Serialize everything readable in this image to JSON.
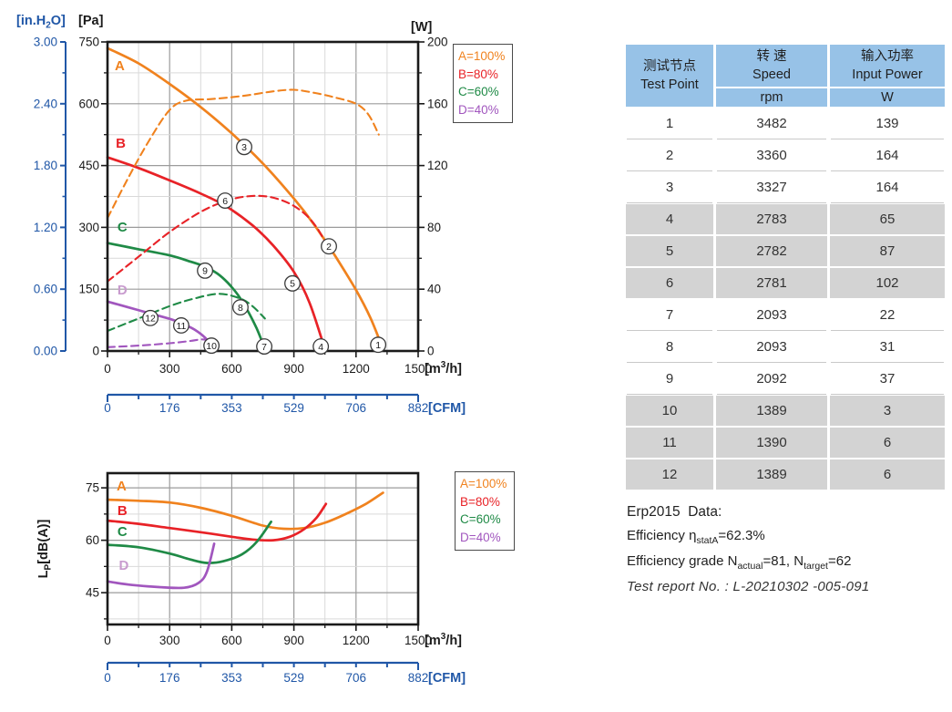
{
  "colors": {
    "axis_blue": "#2057A7",
    "grid_light": "#D9D9D9",
    "grid_dark": "#9B9B9B",
    "border": "#1A1A1A",
    "text": "#1A1A1A",
    "table_header_bg": "#97C2E7",
    "table_shaded_row": "#D3D3D3",
    "series_A": "#F0821E",
    "series_B": "#E82227",
    "series_C": "#1F8A46",
    "series_D": "#A156BE",
    "series_D_label": "#C89BCE"
  },
  "legend": {
    "items": [
      {
        "label": "A=100%",
        "color": "#F0821E"
      },
      {
        "label": "B=80%",
        "color": "#E82227"
      },
      {
        "label": "C=60%",
        "color": "#1F8A46"
      },
      {
        "label": "D=40%",
        "color": "#A156BE"
      }
    ]
  },
  "chart_data": [
    {
      "name": "fan-performance-curves",
      "type": "line",
      "titles": {
        "y_left": "[Pa]",
        "y_left_secondary": {
          "pre": "[in.H",
          "sub": "2",
          "post": "O]"
        },
        "y_right": "[W]",
        "x": {
          "pre": "[m",
          "sup": "3",
          "post": "/h]"
        }
      },
      "x_axis": {
        "ticks": [
          0,
          300,
          600,
          900,
          1200,
          1500
        ],
        "minor_step": 150,
        "max": 1500
      },
      "x_axis_secondary": {
        "title": "[CFM]",
        "ticks": [
          "0",
          "176",
          "353",
          "529",
          "706",
          "882"
        ],
        "max": 882
      },
      "y_axis_left": {
        "ticks": [
          0,
          150,
          300,
          450,
          600,
          750
        ],
        "max": 750
      },
      "y_axis_left_secondary": {
        "ticks": [
          "0.00",
          "0.60",
          "1.20",
          "1.80",
          "2.40",
          "3.00"
        ],
        "max": 3.0
      },
      "y_axis_right": {
        "ticks": [
          0,
          40,
          80,
          120,
          160,
          200
        ],
        "max": 200
      },
      "series": [
        {
          "name": "pressure-A",
          "legend": "A=100%",
          "axis": "left",
          "style": "solid",
          "color": "#F0821E",
          "label": {
            "text": "A",
            "q": 35,
            "v": 681
          },
          "points": [
            [
              0,
              735
            ],
            [
              150,
              698
            ],
            [
              300,
              648
            ],
            [
              450,
              592
            ],
            [
              600,
              528
            ],
            [
              750,
              455
            ],
            [
              900,
              370
            ],
            [
              1000,
              305
            ],
            [
              1100,
              230
            ],
            [
              1200,
              148
            ],
            [
              1270,
              80
            ],
            [
              1325,
              12
            ]
          ]
        },
        {
          "name": "pressure-B",
          "legend": "B=80%",
          "axis": "left",
          "style": "solid",
          "color": "#E82227",
          "label": {
            "text": "B",
            "q": 40,
            "v": 493
          },
          "points": [
            [
              0,
              470
            ],
            [
              150,
              444
            ],
            [
              300,
              414
            ],
            [
              450,
              382
            ],
            [
              570,
              352
            ],
            [
              700,
              305
            ],
            [
              800,
              256
            ],
            [
              900,
              192
            ],
            [
              975,
              118
            ],
            [
              1045,
              12
            ]
          ]
        },
        {
          "name": "pressure-C",
          "legend": "C=60%",
          "axis": "left",
          "style": "solid",
          "color": "#1F8A46",
          "label": {
            "text": "C",
            "q": 48,
            "v": 290
          },
          "points": [
            [
              0,
              262
            ],
            [
              150,
              247
            ],
            [
              300,
              232
            ],
            [
              400,
              217
            ],
            [
              470,
              205
            ],
            [
              530,
              188
            ],
            [
              580,
              166
            ],
            [
              630,
              136
            ],
            [
              680,
              95
            ],
            [
              720,
              55
            ],
            [
              755,
              12
            ]
          ]
        },
        {
          "name": "pressure-D",
          "legend": "D=40%",
          "axis": "left",
          "style": "solid",
          "color": "#A156BE",
          "label_color": "#C89BCE",
          "label": {
            "text": "D",
            "q": 48,
            "v": 137
          },
          "points": [
            [
              0,
              120
            ],
            [
              100,
              106
            ],
            [
              200,
              92
            ],
            [
              300,
              78
            ],
            [
              360,
              67
            ],
            [
              420,
              52
            ],
            [
              470,
              33
            ],
            [
              512,
              8
            ]
          ]
        },
        {
          "name": "power-A",
          "legend": "A=100%",
          "axis": "right",
          "style": "dashed",
          "color": "#F0821E",
          "points": [
            [
              0,
              86
            ],
            [
              100,
              112
            ],
            [
              200,
              136
            ],
            [
              300,
              156
            ],
            [
              380,
              162
            ],
            [
              500,
              163
            ],
            [
              650,
              165
            ],
            [
              800,
              168
            ],
            [
              900,
              169
            ],
            [
              1000,
              167
            ],
            [
              1100,
              164
            ],
            [
              1200,
              160
            ],
            [
              1260,
              153
            ],
            [
              1310,
              140
            ]
          ]
        },
        {
          "name": "power-B",
          "legend": "B=80%",
          "axis": "right",
          "style": "dashed",
          "color": "#E82227",
          "points": [
            [
              0,
              45
            ],
            [
              150,
              61
            ],
            [
              300,
              77
            ],
            [
              450,
              90
            ],
            [
              570,
              97
            ],
            [
              670,
              100
            ],
            [
              770,
              100
            ],
            [
              870,
              96
            ],
            [
              950,
              89
            ],
            [
              1010,
              80
            ],
            [
              1065,
              67
            ]
          ]
        },
        {
          "name": "power-C",
          "legend": "C=60%",
          "axis": "right",
          "style": "dashed",
          "color": "#1F8A46",
          "points": [
            [
              0,
              13
            ],
            [
              150,
              21
            ],
            [
              300,
              29
            ],
            [
              420,
              34
            ],
            [
              540,
              37
            ],
            [
              640,
              34
            ],
            [
              700,
              29
            ],
            [
              760,
              21
            ]
          ]
        },
        {
          "name": "power-D",
          "legend": "D=40%",
          "axis": "right",
          "style": "dashed",
          "color": "#A156BE",
          "points": [
            [
              0,
              2.5
            ],
            [
              150,
              3.5
            ],
            [
              300,
              5
            ],
            [
              400,
              6.5
            ],
            [
              460,
              7.5
            ],
            [
              505,
              6
            ]
          ]
        }
      ],
      "test_point_markers": [
        {
          "label": "1",
          "q": 1307,
          "pa": 15
        },
        {
          "label": "2",
          "q": 1069,
          "pa": 254
        },
        {
          "label": "3",
          "q": 660,
          "pa": 495
        },
        {
          "label": "4",
          "q": 1030,
          "pa": 11
        },
        {
          "label": "5",
          "q": 893,
          "pa": 164
        },
        {
          "label": "6",
          "q": 568,
          "pa": 365
        },
        {
          "label": "7",
          "q": 757,
          "pa": 11
        },
        {
          "label": "8",
          "q": 642,
          "pa": 106
        },
        {
          "label": "9",
          "q": 471,
          "pa": 195
        },
        {
          "label": "10",
          "q": 502,
          "pa": 13
        },
        {
          "label": "11",
          "q": 356,
          "pa": 62
        },
        {
          "label": "12",
          "q": 207,
          "pa": 80
        }
      ]
    },
    {
      "name": "noise-level-curves",
      "type": "line",
      "titles": {
        "x": {
          "pre": "[m",
          "sup": "3",
          "post": "/h]"
        },
        "y": {
          "pre": "L",
          "sub": "P",
          "post": "[dB(A)]"
        }
      },
      "x_axis": {
        "ticks": [
          0,
          300,
          600,
          900,
          1200,
          1500
        ],
        "minor_step": 150,
        "max": 1500
      },
      "x_axis_secondary": {
        "title": "[CFM]",
        "ticks": [
          "0",
          "176",
          "353",
          "529",
          "706",
          "882"
        ],
        "max": 882
      },
      "y_axis": {
        "ticks": [
          45,
          60,
          75
        ],
        "minor_ticks": [
          37.5,
          52.5,
          67.5
        ],
        "min": 35.9,
        "max": 79.2
      },
      "series": [
        {
          "name": "noise-A",
          "legend": "A=100%",
          "style": "solid",
          "color": "#F0821E",
          "label": {
            "text": "A",
            "q": 44,
            "v": 74.3
          },
          "points": [
            [
              0,
              71.6
            ],
            [
              150,
              71.3
            ],
            [
              300,
              70.8
            ],
            [
              450,
              69.3
            ],
            [
              600,
              67
            ],
            [
              750,
              64.2
            ],
            [
              850,
              63.3
            ],
            [
              950,
              63.5
            ],
            [
              1050,
              65
            ],
            [
              1150,
              67.5
            ],
            [
              1250,
              70.5
            ],
            [
              1330,
              73.6
            ]
          ]
        },
        {
          "name": "noise-B",
          "legend": "B=80%",
          "style": "solid",
          "color": "#E82227",
          "label": {
            "text": "B",
            "q": 48,
            "v": 67.2
          },
          "points": [
            [
              0,
              65.6
            ],
            [
              150,
              64.7
            ],
            [
              300,
              63.5
            ],
            [
              450,
              62.3
            ],
            [
              600,
              61
            ],
            [
              700,
              60.2
            ],
            [
              800,
              60
            ],
            [
              880,
              61
            ],
            [
              950,
              63.2
            ],
            [
              1010,
              66.5
            ],
            [
              1055,
              70.4
            ]
          ]
        },
        {
          "name": "noise-C",
          "legend": "C=60%",
          "style": "solid",
          "color": "#1F8A46",
          "label": {
            "text": "C",
            "q": 48,
            "v": 61.2
          },
          "points": [
            [
              0,
              58.7
            ],
            [
              150,
              58
            ],
            [
              300,
              56.2
            ],
            [
              400,
              54.5
            ],
            [
              480,
              53.5
            ],
            [
              560,
              54
            ],
            [
              650,
              56
            ],
            [
              720,
              59.5
            ],
            [
              790,
              65.3
            ]
          ]
        },
        {
          "name": "noise-D",
          "legend": "D=40%",
          "style": "solid",
          "color": "#A156BE",
          "label_color": "#C89BCE",
          "label": {
            "text": "D",
            "q": 55,
            "v": 51.5
          },
          "points": [
            [
              0,
              48.2
            ],
            [
              120,
              47.2
            ],
            [
              250,
              46.6
            ],
            [
              370,
              46.4
            ],
            [
              440,
              47.8
            ],
            [
              480,
              51
            ],
            [
              515,
              59
            ]
          ]
        }
      ]
    }
  ],
  "table": {
    "header": {
      "col1_cn": "测试节点",
      "col1_en": "Test Point",
      "col2_cn": "转 速",
      "col2_en": "Speed",
      "col2_unit": "rpm",
      "col3_cn": "输入功率",
      "col3_en": "Input Power",
      "col3_unit": "W"
    },
    "rows": [
      {
        "point": "1",
        "rpm": "3482",
        "power": "139",
        "shaded": false
      },
      {
        "point": "2",
        "rpm": "3360",
        "power": "164",
        "shaded": false
      },
      {
        "point": "3",
        "rpm": "3327",
        "power": "164",
        "shaded": false
      },
      {
        "point": "4",
        "rpm": "2783",
        "power": "65",
        "shaded": true
      },
      {
        "point": "5",
        "rpm": "2782",
        "power": "87",
        "shaded": true
      },
      {
        "point": "6",
        "rpm": "2781",
        "power": "102",
        "shaded": true
      },
      {
        "point": "7",
        "rpm": "2093",
        "power": "22",
        "shaded": false
      },
      {
        "point": "8",
        "rpm": "2093",
        "power": "31",
        "shaded": false
      },
      {
        "point": "9",
        "rpm": "2092",
        "power": "37",
        "shaded": false
      },
      {
        "point": "10",
        "rpm": "1389",
        "power": "3",
        "shaded": true
      },
      {
        "point": "11",
        "rpm": "1390",
        "power": "6",
        "shaded": true
      },
      {
        "point": "12",
        "rpm": "1389",
        "power": "6",
        "shaded": true
      }
    ]
  },
  "erp": {
    "title": "Erp2015  Data:",
    "eff_pre": "Efficiency η",
    "eff_sub": "statA",
    "eff_val": "=62.3%",
    "grade_pre": "Efficiency grade N",
    "grade_sub1": "actual",
    "grade_mid": "=81, N",
    "grade_sub2": "target",
    "grade_val": "=62",
    "report": "Test report No. : L-20210302 -005-091"
  }
}
